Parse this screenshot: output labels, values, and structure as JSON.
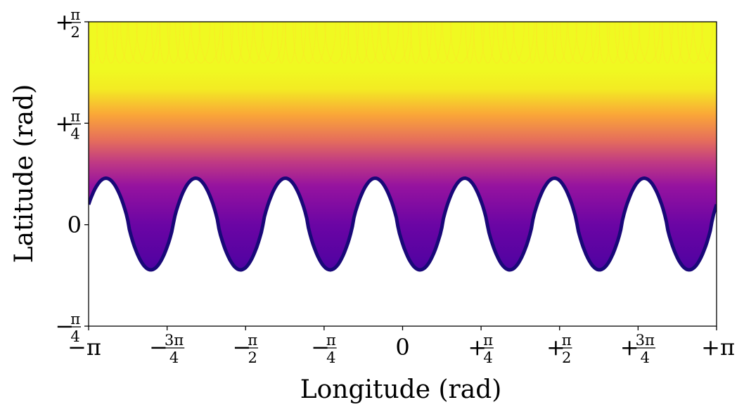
{
  "chart_data": {
    "type": "heatmap",
    "title": "",
    "xlabel": "Longitude (rad)",
    "ylabel": "Latitude (rad)",
    "xlim": [
      -3.14159,
      3.14159
    ],
    "ylim": [
      -0.7854,
      1.5708
    ],
    "colormap": "plasma",
    "grid": false,
    "legend": "none",
    "x_ticks": [
      {
        "value": -3.14159,
        "sign": "−",
        "num": "π",
        "den": ""
      },
      {
        "value": -2.35619,
        "sign": "−",
        "num": "3π",
        "den": "4"
      },
      {
        "value": -1.5708,
        "sign": "−",
        "num": "π",
        "den": "2"
      },
      {
        "value": -0.7854,
        "sign": "−",
        "num": "π",
        "den": "4"
      },
      {
        "value": 0,
        "sign": "",
        "num": "0",
        "den": ""
      },
      {
        "value": 0.7854,
        "sign": "+",
        "num": "π",
        "den": "4"
      },
      {
        "value": 1.5708,
        "sign": "+",
        "num": "π",
        "den": "2"
      },
      {
        "value": 2.35619,
        "sign": "+",
        "num": "3π",
        "den": "4"
      },
      {
        "value": 3.14159,
        "sign": "+",
        "num": "π",
        "den": ""
      }
    ],
    "y_ticks": [
      {
        "value": -0.7854,
        "sign": "−",
        "num": "π",
        "den": "4"
      },
      {
        "value": 0,
        "sign": "",
        "num": "0",
        "den": ""
      },
      {
        "value": 0.7854,
        "sign": "+",
        "num": "π",
        "den": "4"
      },
      {
        "value": 1.5708,
        "sign": "+",
        "num": "π",
        "den": "2"
      }
    ],
    "boundary_lobes": {
      "count": 7,
      "peak_lat": 0.36,
      "trough_lat": -0.35,
      "first_peak_lon": -2.07,
      "spacing": 0.8976
    },
    "color_bands": [
      {
        "lat": 1.57,
        "value": 1.0
      },
      {
        "lat": 1.2,
        "value": 0.97
      },
      {
        "lat": 1.05,
        "value": 0.85
      },
      {
        "lat": 0.85,
        "value": 0.7
      },
      {
        "lat": 0.65,
        "value": 0.55
      },
      {
        "lat": 0.48,
        "value": 0.4
      },
      {
        "lat": 0.3,
        "value": 0.28
      },
      {
        "lat": 0.0,
        "value": 0.18
      },
      {
        "lat": -0.35,
        "value": 0.12
      }
    ]
  }
}
